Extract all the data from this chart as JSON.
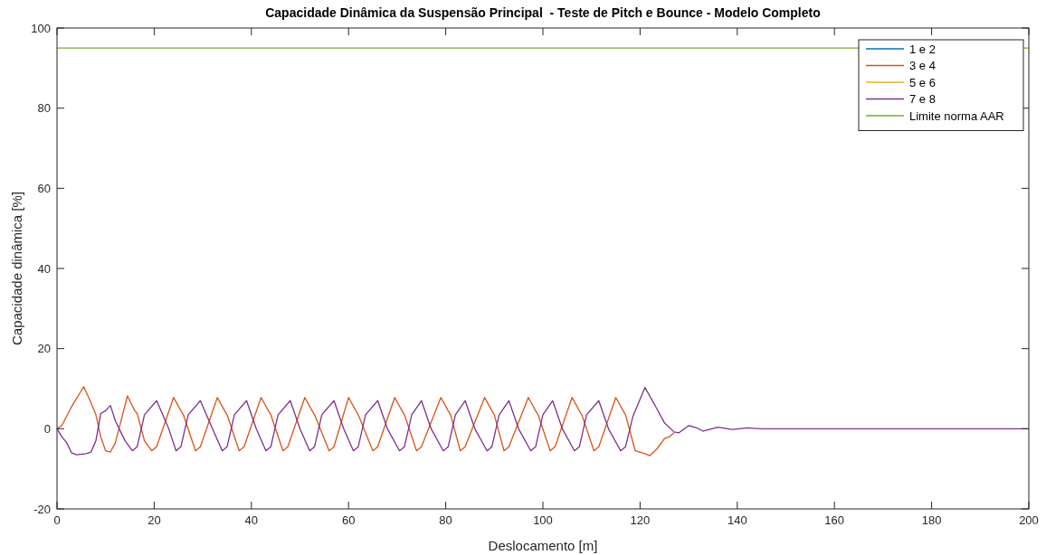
{
  "chart_data": {
    "type": "line",
    "title": "Capacidade Dinâmica da Suspensão Principal  - Teste de Pitch e Bounce - Modelo Completo",
    "xlabel": "Deslocamento [m]",
    "ylabel": "Capacidade dinâmica [%]",
    "xlim": [
      0,
      200
    ],
    "xticks": [
      0,
      20,
      40,
      60,
      80,
      100,
      120,
      140,
      160,
      180,
      200
    ],
    "ylim": [
      -20,
      100
    ],
    "yticks": [
      -20,
      0,
      20,
      40,
      60,
      80,
      100
    ],
    "grid": false,
    "legend": "top right",
    "series": [
      {
        "name": "1 e 2",
        "color": "#0072bd"
      },
      {
        "name": "3 e 4",
        "color": "#d95319",
        "x": [
          0,
          1,
          3,
          5.5,
          7,
          8,
          9,
          10,
          11,
          12,
          14.5,
          16,
          16.5,
          18,
          19.5,
          20.5,
          24,
          25.5,
          26,
          28.5,
          29.5,
          33,
          34.5,
          35,
          37.5,
          38.5,
          42,
          43.5,
          44,
          46.5,
          47.5,
          51,
          52.5,
          53,
          56,
          57,
          60,
          61.5,
          62,
          65,
          66,
          69.5,
          71,
          71.5,
          74,
          75,
          79,
          80.5,
          81,
          83,
          84,
          88,
          89.5,
          90,
          92,
          93,
          97,
          98.5,
          99,
          101.5,
          102.5,
          106,
          107.5,
          108,
          110.5,
          111.5,
          115,
          116.5,
          117,
          119,
          121,
          122,
          123.5,
          125,
          126,
          127
        ],
        "values": [
          0,
          0.8,
          5.5,
          10.5,
          6.5,
          3.5,
          -2,
          -5.5,
          -5.8,
          -3.5,
          8.2,
          4.5,
          3.8,
          -3,
          -5.5,
          -4.5,
          7.8,
          4.5,
          3.5,
          -5.5,
          -4.5,
          7.8,
          4.5,
          3.5,
          -5.5,
          -4.5,
          7.8,
          4.5,
          3.5,
          -5.5,
          -4.5,
          7.8,
          4.5,
          3.5,
          -5.5,
          -4.5,
          7.8,
          4.5,
          3.5,
          -5.5,
          -4.5,
          7.8,
          4.5,
          3.5,
          -5.5,
          -4.5,
          7.8,
          4.5,
          3.5,
          -5.5,
          -4.5,
          7.8,
          4.5,
          3.5,
          -5.5,
          -4.5,
          7.8,
          4.5,
          3.5,
          -5.5,
          -4.5,
          7.8,
          4.5,
          3.5,
          -5.5,
          -4.5,
          7.8,
          4.5,
          3.5,
          -5.5,
          -6.2,
          -6.7,
          -5,
          -2.5,
          -2,
          -1
        ]
      },
      {
        "name": "5 e 6",
        "color": "#edb120"
      },
      {
        "name": "7 e 8",
        "color": "#7e2f8e",
        "x": [
          0,
          1,
          2,
          3,
          4,
          6,
          7,
          8,
          9,
          10,
          11,
          12,
          14,
          15.5,
          16.5,
          18,
          20.5,
          23,
          24.5,
          25.5,
          27,
          29.5,
          32,
          34,
          35,
          36.5,
          39,
          41,
          43,
          44,
          45.5,
          48,
          50,
          52,
          53,
          54.5,
          57,
          59,
          61,
          62,
          63.5,
          66,
          68,
          70.5,
          71.5,
          73,
          75,
          77,
          79.5,
          80.5,
          82,
          84,
          86,
          88.5,
          89.5,
          91,
          93,
          95,
          97.5,
          98.5,
          100,
          102,
          104,
          106.5,
          107.5,
          109,
          111.5,
          113.5,
          116,
          117,
          118.5,
          121,
          123,
          125,
          127,
          128,
          130,
          131.5,
          133,
          136,
          139,
          142,
          145,
          200
        ],
        "values": [
          0,
          -2,
          -3.5,
          -6,
          -6.5,
          -6.2,
          -5.8,
          -3,
          3.8,
          4.5,
          5.8,
          2,
          -3,
          -5.5,
          -4.5,
          3.5,
          7,
          0,
          -5.5,
          -4.5,
          3.5,
          7,
          0,
          -5.5,
          -4.5,
          3.5,
          7,
          0,
          -5.5,
          -4.5,
          3.5,
          7,
          0,
          -5.5,
          -4.5,
          3.5,
          7,
          0,
          -5.5,
          -4.5,
          3.5,
          7,
          0,
          -5.5,
          -4.5,
          3.5,
          7,
          0,
          -5.5,
          -4.5,
          3.5,
          7,
          0,
          -5.5,
          -4.5,
          3.5,
          7,
          0,
          -5.5,
          -4.5,
          3.5,
          7,
          0,
          -5.5,
          -4.5,
          3.5,
          7,
          0,
          -5.5,
          -4.5,
          3,
          10.3,
          6,
          1.5,
          -0.8,
          -1,
          0.8,
          0.3,
          -0.6,
          0.4,
          -0.2,
          0.2,
          0,
          0
        ]
      }
    ],
    "ref_lines": [
      {
        "axis": "y",
        "value": 95,
        "label": "Limite norma AAR",
        "color": "#77ac30"
      }
    ]
  }
}
